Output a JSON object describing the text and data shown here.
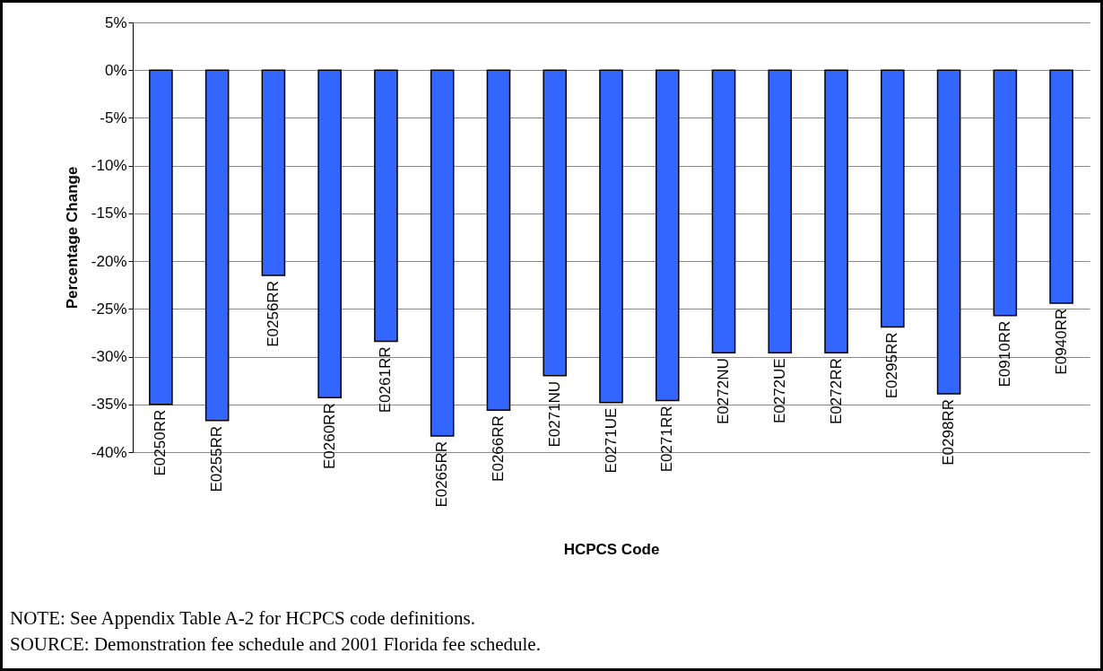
{
  "chart_data": {
    "type": "bar",
    "xlabel": "HCPCS Code",
    "ylabel": "Percentage Change",
    "categories": [
      "E0250RR",
      "E0255RR",
      "E0256RR",
      "E0260RR",
      "E0261RR",
      "E0265RR",
      "E0266RR",
      "E0271NU",
      "E0271UE",
      "E0271RR",
      "E0272NU",
      "E0272UE",
      "E0272RR",
      "E0295RR",
      "E0298RR",
      "E0910RR",
      "E0940RR"
    ],
    "values": [
      -35.0,
      -36.7,
      -21.5,
      -34.3,
      -28.4,
      -38.3,
      -35.6,
      -32.0,
      -34.8,
      -34.6,
      -29.6,
      -29.6,
      -29.6,
      -26.9,
      -33.9,
      -25.7,
      -24.4
    ],
    "color": "#3366ff",
    "ylim": [
      -40,
      5
    ],
    "yticks": [
      {
        "value": 5,
        "label": "5%"
      },
      {
        "value": 0,
        "label": "0%"
      },
      {
        "value": -5,
        "label": "-5%"
      },
      {
        "value": -10,
        "label": "-10%"
      },
      {
        "value": -15,
        "label": "-15%"
      },
      {
        "value": -20,
        "label": "-20%"
      },
      {
        "value": -25,
        "label": "-25%"
      },
      {
        "value": -30,
        "label": "-30%"
      },
      {
        "value": -35,
        "label": "-35%"
      },
      {
        "value": -40,
        "label": "-40%"
      }
    ],
    "grid": "y",
    "annotations": [
      "NOTE:  See Appendix Table A-2 for HCPCS code definitions.",
      "SOURCE:  Demonstration fee schedule and 2001 Florida fee schedule."
    ]
  }
}
